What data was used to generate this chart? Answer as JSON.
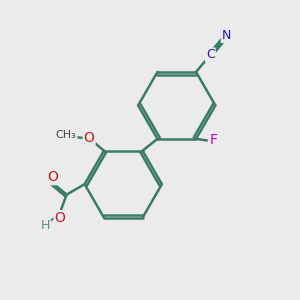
{
  "background_color": "#ebebeb",
  "bond_color": "#3a7a6a",
  "bond_width": 1.8,
  "atom_colors": {
    "C": "#1a1acc",
    "N": "#1a1acc",
    "F": "#cc00cc",
    "O": "#cc1a1a",
    "H": "#5a8a8a"
  },
  "figsize": [
    3.0,
    3.0
  ],
  "dpi": 100
}
